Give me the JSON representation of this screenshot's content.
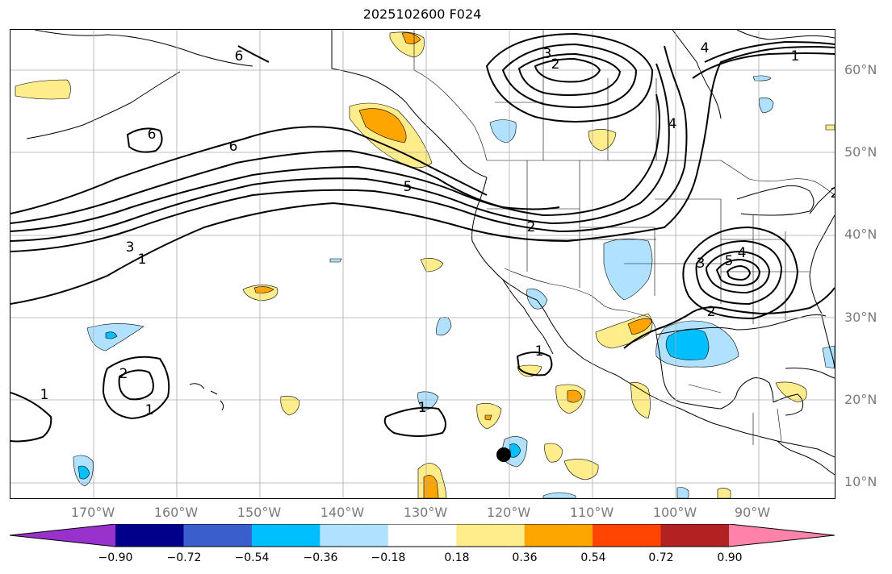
{
  "title": "2025102600 F024",
  "lat_labels": [
    "60°N",
    "50°N",
    "40°N",
    "30°N",
    "20°N",
    "10°N"
  ],
  "lon_labels": [
    "170°W",
    "160°W",
    "150°W",
    "140°W",
    "130°W",
    "120°W",
    "110°W",
    "100°W",
    "90°W"
  ],
  "contour_labels": [
    "6",
    "6",
    "6",
    "5",
    "3",
    "1",
    "2",
    "2",
    "3",
    "4",
    "1",
    "4",
    "2",
    "3",
    "5",
    "4",
    "2",
    "1",
    "2",
    "1",
    "1",
    "1"
  ],
  "colorbar": {
    "ticks": [
      "−0.90",
      "−0.72",
      "−0.54",
      "−0.36",
      "−0.18",
      "0.18",
      "0.36",
      "0.54",
      "0.72",
      "0.90"
    ],
    "colors": [
      "#9932cc",
      "#00008b",
      "#3a5fcd",
      "#00bfff",
      "#b0e2ff",
      "#ffffff",
      "#ffec8b",
      "#ffa500",
      "#ff4500",
      "#b22222",
      "#ff82ab"
    ]
  },
  "chart_data": {
    "type": "contour-map",
    "title": "2025102600 F024",
    "projection": "Mercator",
    "lon_range": [
      -180,
      -80
    ],
    "lat_range": [
      8,
      65
    ],
    "lat_ticks": [
      60,
      50,
      40,
      30,
      20,
      10
    ],
    "lon_ticks": [
      -170,
      -160,
      -150,
      -140,
      -130,
      -120,
      -110,
      -100,
      -90
    ],
    "contour_levels": [
      1,
      2,
      3,
      4,
      5,
      6
    ],
    "colorbar_levels": [
      -0.9,
      -0.72,
      -0.54,
      -0.36,
      -0.18,
      0.18,
      0.36,
      0.54,
      0.72,
      0.9
    ],
    "marker": {
      "lon": -120.1,
      "lat": 13.2,
      "label": ""
    }
  }
}
